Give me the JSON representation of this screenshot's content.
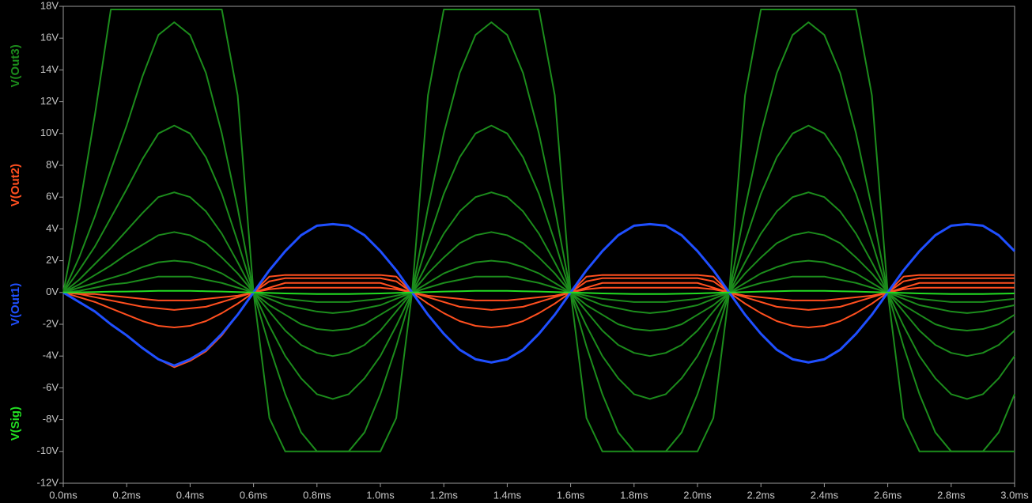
{
  "chart_data": {
    "type": "line",
    "x": [
      0,
      0.05,
      0.1,
      0.15,
      0.2,
      0.25,
      0.3,
      0.35,
      0.4,
      0.45,
      0.5,
      0.55,
      0.6,
      0.65,
      0.7,
      0.75,
      0.8,
      0.85,
      0.9,
      0.95,
      1,
      1.05,
      1.1,
      1.15,
      1.2,
      1.25,
      1.3,
      1.35,
      1.4,
      1.45,
      1.5,
      1.55,
      1.6,
      1.65,
      1.7,
      1.75,
      1.8,
      1.85,
      1.9,
      1.95,
      2,
      2.05,
      2.1,
      2.15,
      2.2,
      2.25,
      2.3,
      2.35,
      2.4,
      2.45,
      2.5,
      2.55,
      2.6,
      2.65,
      2.7,
      2.75,
      2.8,
      2.85,
      2.9,
      2.95,
      3
    ],
    "xlim": [
      0,
      3
    ],
    "xticks": [
      {
        "value": 0,
        "label": "0.0ms"
      },
      {
        "value": 0.2,
        "label": "0.2ms"
      },
      {
        "value": 0.4,
        "label": "0.4ms"
      },
      {
        "value": 0.6,
        "label": "0.6ms"
      },
      {
        "value": 0.8,
        "label": "0.8ms"
      },
      {
        "value": 1,
        "label": "1.0ms"
      },
      {
        "value": 1.2,
        "label": "1.2ms"
      },
      {
        "value": 1.4,
        "label": "1.4ms"
      },
      {
        "value": 1.6,
        "label": "1.6ms"
      },
      {
        "value": 1.8,
        "label": "1.8ms"
      },
      {
        "value": 2,
        "label": "2.0ms"
      },
      {
        "value": 2.2,
        "label": "2.2ms"
      },
      {
        "value": 2.4,
        "label": "2.4ms"
      },
      {
        "value": 2.6,
        "label": "2.6ms"
      },
      {
        "value": 2.8,
        "label": "2.8ms"
      },
      {
        "value": 3,
        "label": "3.0ms"
      }
    ],
    "ylim": [
      -12,
      18
    ],
    "yticks": [
      {
        "value": 18,
        "label": "18V"
      },
      {
        "value": 16,
        "label": "16V"
      },
      {
        "value": 14,
        "label": "14V"
      },
      {
        "value": 12,
        "label": "12V"
      },
      {
        "value": 10,
        "label": "10V"
      },
      {
        "value": 8,
        "label": "8V"
      },
      {
        "value": 6,
        "label": "6V"
      },
      {
        "value": 4,
        "label": "4V"
      },
      {
        "value": 2,
        "label": "2V"
      },
      {
        "value": 0,
        "label": "0V"
      },
      {
        "value": -2,
        "label": "-2V"
      },
      {
        "value": -4,
        "label": "-4V"
      },
      {
        "value": -6,
        "label": "-6V"
      },
      {
        "value": -8,
        "label": "-8V"
      },
      {
        "value": -10,
        "label": "-10V"
      },
      {
        "value": -12,
        "label": "-12V"
      }
    ],
    "series": [
      {
        "name": "V(Out3)",
        "color": "#1c8c1c",
        "values": [
          [
            0,
            5.2,
            11.2,
            17.8,
            17.8,
            17.8,
            17.8,
            17.8,
            17.8,
            17.8,
            17.8,
            12.4,
            0,
            -7.9,
            -10,
            -10,
            -10,
            -10,
            -10,
            -10,
            -10,
            -7.9,
            0,
            12.4,
            17.8,
            17.8,
            17.8,
            17.8,
            17.8,
            17.8,
            17.8,
            12.4,
            0,
            -7.9,
            -10,
            -10,
            -10,
            -10,
            -10,
            -10,
            -10,
            -7.9,
            0,
            12.4,
            17.8,
            17.8,
            17.8,
            17.8,
            17.8,
            17.8,
            17.8,
            12.4,
            0,
            -7.9,
            -10,
            -10,
            -10,
            -10,
            -10,
            -10,
            -10
          ],
          [
            0,
            2.2,
            4.8,
            7.7,
            10.5,
            13.6,
            16.2,
            17,
            16.2,
            13.8,
            10,
            5.3,
            0,
            -3.4,
            -6.4,
            -8.8,
            -10,
            -10,
            -10,
            -8.8,
            -6.4,
            -3.4,
            0,
            5.3,
            10,
            13.8,
            16.2,
            17,
            16.2,
            13.8,
            10,
            5.3,
            0,
            -3.4,
            -6.4,
            -8.8,
            -10,
            -10,
            -10,
            -8.8,
            -6.4,
            -3.4,
            0,
            5.3,
            10,
            13.8,
            16.2,
            17,
            16.2,
            13.8,
            10,
            5.3,
            0,
            -3.4,
            -6.4,
            -8.8,
            -10,
            -10,
            -10,
            -8.8,
            -6.4
          ],
          [
            0,
            1.4,
            2.9,
            4.7,
            6.5,
            8.4,
            10,
            10.5,
            10,
            8.5,
            6.2,
            3.2,
            0,
            -2.1,
            -4,
            -5.4,
            -6.4,
            -6.7,
            -6.4,
            -5.4,
            -4,
            -2.1,
            0,
            3.2,
            6.2,
            8.5,
            10,
            10.5,
            10,
            8.5,
            6.2,
            3.2,
            0,
            -2.1,
            -4,
            -5.4,
            -6.4,
            -6.7,
            -6.4,
            -5.4,
            -4,
            -2.1,
            0,
            3.2,
            6.2,
            8.5,
            10,
            10.5,
            10,
            8.5,
            6.2,
            3.2,
            0,
            -2.1,
            -4,
            -5.4,
            -6.4,
            -6.7,
            -6.4,
            -5.4,
            -4
          ],
          [
            0,
            0.8,
            1.8,
            2.8,
            3.9,
            5,
            6,
            6.3,
            6,
            5.1,
            3.7,
            1.9,
            0,
            -1.2,
            -2.4,
            -3.3,
            -3.8,
            -4,
            -3.8,
            -3.3,
            -2.4,
            -1.2,
            0,
            1.9,
            3.7,
            5.1,
            6,
            6.3,
            6,
            5.1,
            3.7,
            1.9,
            0,
            -1.2,
            -2.4,
            -3.3,
            -3.8,
            -4,
            -3.8,
            -3.3,
            -2.4,
            -1.2,
            0,
            1.9,
            3.7,
            5.1,
            6,
            6.3,
            6,
            5.1,
            3.7,
            1.9,
            0,
            -1.2,
            -2.4,
            -3.3,
            -3.8,
            -4,
            -3.8,
            -3.3,
            -2.4
          ],
          [
            0,
            0.5,
            1.1,
            1.7,
            2.4,
            3,
            3.6,
            3.8,
            3.6,
            3.1,
            2.2,
            1.2,
            0,
            -0.8,
            -1.4,
            -2,
            -2.3,
            -2.4,
            -2.3,
            -2,
            -1.4,
            -0.8,
            0,
            1.2,
            2.2,
            3.1,
            3.6,
            3.8,
            3.6,
            3.1,
            2.2,
            1.2,
            0,
            -0.8,
            -1.4,
            -2,
            -2.3,
            -2.4,
            -2.3,
            -2,
            -1.4,
            -0.8,
            0,
            1.2,
            2.2,
            3.1,
            3.6,
            3.8,
            3.6,
            3.1,
            2.2,
            1.2,
            0,
            -0.8,
            -1.4,
            -2,
            -2.3,
            -2.4,
            -2.3,
            -2,
            -1.4
          ],
          [
            0,
            0.3,
            0.6,
            0.9,
            1.2,
            1.6,
            1.9,
            2,
            1.9,
            1.6,
            1.2,
            0.6,
            0,
            -0.4,
            -0.8,
            -1,
            -1.2,
            -1.3,
            -1.2,
            -1,
            -0.8,
            -0.4,
            0,
            0.6,
            1.2,
            1.6,
            1.9,
            2,
            1.9,
            1.6,
            1.2,
            0.6,
            0,
            -0.4,
            -0.8,
            -1,
            -1.2,
            -1.3,
            -1.2,
            -1,
            -0.8,
            -0.4,
            0,
            0.6,
            1.2,
            1.6,
            1.9,
            2,
            1.9,
            1.6,
            1.2,
            0.6,
            0,
            -0.4,
            -0.8,
            -1,
            -1.2,
            -1.3,
            -1.2,
            -1,
            -0.8
          ],
          [
            0,
            0.1,
            0.3,
            0.5,
            0.6,
            0.8,
            1,
            1,
            1,
            0.8,
            0.6,
            0.3,
            0,
            -0.2,
            -0.4,
            -0.5,
            -0.6,
            -0.6,
            -0.6,
            -0.5,
            -0.4,
            -0.2,
            0,
            0.3,
            0.6,
            0.8,
            1,
            1,
            1,
            0.8,
            0.6,
            0.3,
            0,
            -0.2,
            -0.4,
            -0.5,
            -0.6,
            -0.6,
            -0.6,
            -0.5,
            -0.4,
            -0.2,
            0,
            0.3,
            0.6,
            0.8,
            1,
            1,
            1,
            0.8,
            0.6,
            0.3,
            0,
            -0.2,
            -0.4,
            -0.5,
            -0.6,
            -0.6,
            -0.6,
            -0.5,
            -0.4
          ]
        ]
      },
      {
        "name": "V(Out2)",
        "color": "#ff4f1f",
        "values": [
          [
            0,
            -0.6,
            -1.2,
            -2,
            -2.7,
            -3.5,
            -4.2,
            -4.7,
            -4.3,
            -3.7,
            -2.7,
            -1.4,
            0,
            1,
            1.1,
            1.1,
            1.1,
            1.1,
            1.1,
            1.1,
            1.1,
            1,
            0,
            -1.4,
            -2.6,
            -3.6,
            -4.2,
            -4.4,
            -4.2,
            -3.6,
            -2.6,
            -1.4,
            0,
            1,
            1.1,
            1.1,
            1.1,
            1.1,
            1.1,
            1.1,
            1.1,
            1,
            0,
            -1.4,
            -2.6,
            -3.6,
            -4.2,
            -4.4,
            -4.2,
            -3.6,
            -2.6,
            -1.4,
            0,
            1,
            1.1,
            1.1,
            1.1,
            1.1,
            1.1,
            1.1,
            1.1
          ],
          [
            0,
            -0.3,
            -0.6,
            -1,
            -1.4,
            -1.8,
            -2.1,
            -2.2,
            -2.1,
            -1.8,
            -1.3,
            -0.7,
            0,
            0.7,
            0.9,
            0.9,
            0.9,
            0.9,
            0.9,
            0.9,
            0.9,
            0.7,
            0,
            -0.7,
            -1.3,
            -1.8,
            -2.1,
            -2.2,
            -2.1,
            -1.8,
            -1.3,
            -0.7,
            0,
            0.7,
            0.9,
            0.9,
            0.9,
            0.9,
            0.9,
            0.9,
            0.9,
            0.7,
            0,
            -0.7,
            -1.3,
            -1.8,
            -2.1,
            -2.2,
            -2.1,
            -1.8,
            -1.3,
            -0.7,
            0,
            0.7,
            0.9,
            0.9,
            0.9,
            0.9,
            0.9,
            0.9,
            0.9
          ],
          [
            0,
            -0.1,
            -0.3,
            -0.5,
            -0.7,
            -0.9,
            -1,
            -1.1,
            -1,
            -0.9,
            -0.6,
            -0.3,
            0,
            0.3,
            0.6,
            0.6,
            0.6,
            0.6,
            0.6,
            0.6,
            0.6,
            0.3,
            0,
            -0.3,
            -0.6,
            -0.9,
            -1,
            -1.1,
            -1,
            -0.9,
            -0.6,
            -0.3,
            0,
            0.3,
            0.6,
            0.6,
            0.6,
            0.6,
            0.6,
            0.6,
            0.6,
            0.3,
            0,
            -0.3,
            -0.6,
            -0.9,
            -1,
            -1.1,
            -1,
            -0.9,
            -0.6,
            -0.3,
            0,
            0.3,
            0.6,
            0.6,
            0.6,
            0.6,
            0.6,
            0.6,
            0.6
          ],
          [
            0,
            -0.1,
            -0.1,
            -0.2,
            -0.3,
            -0.4,
            -0.5,
            -0.5,
            -0.5,
            -0.4,
            -0.3,
            -0.2,
            0,
            0.2,
            0.3,
            0.3,
            0.3,
            0.3,
            0.3,
            0.3,
            0.3,
            0.2,
            0,
            -0.2,
            -0.3,
            -0.4,
            -0.5,
            -0.5,
            -0.5,
            -0.4,
            -0.3,
            -0.2,
            0,
            0.2,
            0.3,
            0.3,
            0.3,
            0.3,
            0.3,
            0.3,
            0.3,
            0.2,
            0,
            -0.2,
            -0.3,
            -0.4,
            -0.5,
            -0.5,
            -0.5,
            -0.4,
            -0.3,
            -0.2,
            0,
            0.2,
            0.3,
            0.3,
            0.3,
            0.3,
            0.3,
            0.3,
            0.3
          ]
        ]
      },
      {
        "name": "V(Out1)",
        "color": "#1f4fff",
        "values": [
          [
            0,
            -0.6,
            -1.2,
            -2,
            -2.7,
            -3.5,
            -4.2,
            -4.6,
            -4.2,
            -3.6,
            -2.6,
            -1.4,
            0,
            1.4,
            2.6,
            3.6,
            4.2,
            4.3,
            4.2,
            3.6,
            2.6,
            1.4,
            0,
            -1.4,
            -2.6,
            -3.6,
            -4.2,
            -4.4,
            -4.2,
            -3.6,
            -2.6,
            -1.4,
            0,
            1.4,
            2.6,
            3.6,
            4.2,
            4.3,
            4.2,
            3.6,
            2.6,
            1.4,
            0,
            -1.4,
            -2.6,
            -3.6,
            -4.2,
            -4.4,
            -4.2,
            -3.6,
            -2.6,
            -1.4,
            0,
            1.4,
            2.6,
            3.6,
            4.2,
            4.3,
            4.2,
            3.6,
            2.6
          ]
        ]
      },
      {
        "name": "V(Sig)",
        "color": "#22dd22",
        "values": [
          [
            0,
            0.01,
            0.03,
            0.05,
            0.06,
            0.08,
            0.1,
            0.1,
            0.1,
            0.08,
            0.06,
            0.03,
            0,
            -0.03,
            -0.06,
            -0.08,
            -0.1,
            -0.1,
            -0.1,
            -0.08,
            -0.06,
            -0.03,
            0,
            0.03,
            0.06,
            0.08,
            0.1,
            0.1,
            0.1,
            0.08,
            0.06,
            0.03,
            0,
            -0.03,
            -0.06,
            -0.08,
            -0.1,
            -0.1,
            -0.1,
            -0.08,
            -0.06,
            -0.03,
            0,
            0.03,
            0.06,
            0.08,
            0.1,
            0.1,
            0.1,
            0.08,
            0.06,
            0.03,
            0,
            -0.03,
            -0.06,
            -0.08,
            -0.1,
            -0.1,
            -0.1,
            -0.08,
            -0.06
          ]
        ]
      }
    ]
  }
}
